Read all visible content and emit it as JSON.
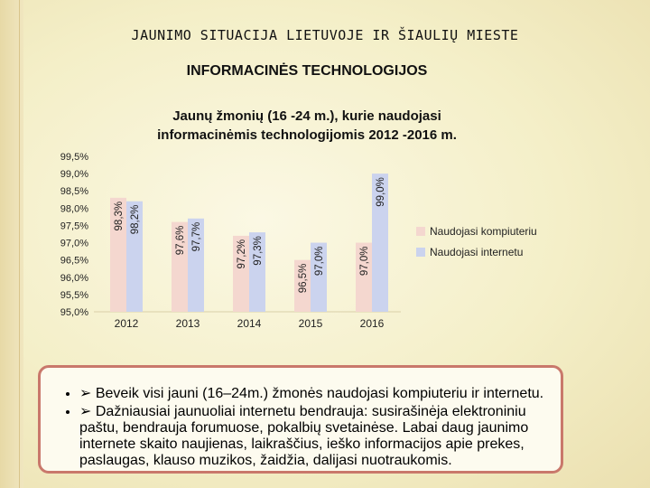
{
  "header": {
    "title": "JAUNIMO SITUACIJA LIETUVOJE IR ŠIAULIŲ MIESTE",
    "section": "INFORMACINĖS TECHNOLOGIJOS"
  },
  "chart_data": {
    "type": "bar",
    "title_line1": "Jaunų žmonių (16 -24 m.), kurie naudojasi",
    "title_line2": "informacinėmis technologijomis 2012 -2016 m.",
    "categories": [
      "2012",
      "2013",
      "2014",
      "2015",
      "2016"
    ],
    "series": [
      {
        "name": "Naudojasi kompiuteriu",
        "color": "#f4d7cf",
        "values": [
          98.3,
          97.6,
          97.2,
          96.5,
          97.0
        ],
        "labels": [
          "98,3%",
          "97,6%",
          "97,2%",
          "96,5%",
          "97,0%"
        ]
      },
      {
        "name": "Naudojasi internetu",
        "color": "#cbd3ee",
        "values": [
          98.2,
          97.7,
          97.3,
          97.0,
          99.0
        ],
        "labels": [
          "98,2%",
          "97,7%",
          "97,3%",
          "97,0%",
          "99,0%"
        ]
      }
    ],
    "ylim": [
      95.0,
      99.5
    ],
    "yticks": [
      95.0,
      95.5,
      96.0,
      96.5,
      97.0,
      97.5,
      98.0,
      98.5,
      99.0,
      99.5
    ],
    "ytick_labels": [
      "95,0%",
      "95,5%",
      "96,0%",
      "96,5%",
      "97,0%",
      "97,5%",
      "98,0%",
      "98,5%",
      "99,0%",
      "99,5%"
    ],
    "legend_position": "right",
    "grid": false
  },
  "notes": [
    "Beveik visi jauni (16–24m.) žmonės naudojasi kompiuteriu ir internetu.",
    "Dažniausiai jaunuoliai internetu bendrauja: susirašinėja elektroniniu paštu, bendrauja forumuose, pokalbių svetainėse. Labai daug jaunimo internete skaito naujienas, laikraščius, ieško informacijos apie prekes, paslaugas, klauso muzikos, žaidžia, dalijasi nuotraukomis."
  ]
}
